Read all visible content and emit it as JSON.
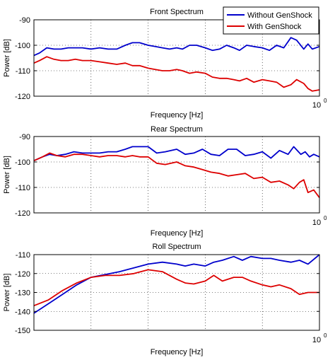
{
  "chart_data": [
    {
      "type": "line",
      "title": "Front Spectrum",
      "xlabel": "Frequency [Hz]",
      "ylabel": "Power [dB]",
      "ylim": [
        -120,
        -90
      ],
      "yticks": [
        -90,
        -100,
        -110,
        -120
      ],
      "xtick_label": "10",
      "xtick_exponent": "0",
      "grid": true,
      "legend": {
        "position": "top-right",
        "entries": [
          "Without GenShock",
          "With GenShock"
        ]
      },
      "series": [
        {
          "name": "Without GenShock",
          "color": "#0000cc",
          "x": [
            0,
            0.02,
            0.045,
            0.07,
            0.095,
            0.12,
            0.145,
            0.17,
            0.2,
            0.23,
            0.26,
            0.29,
            0.32,
            0.345,
            0.37,
            0.4,
            0.425,
            0.45,
            0.475,
            0.5,
            0.52,
            0.545,
            0.57,
            0.6,
            0.625,
            0.65,
            0.675,
            0.7,
            0.72,
            0.745,
            0.77,
            0.8,
            0.825,
            0.85,
            0.875,
            0.9,
            0.92,
            0.945,
            0.96,
            0.975,
            1.0
          ],
          "y": [
            -104,
            -103,
            -101,
            -101.5,
            -101.5,
            -101,
            -101,
            -101,
            -101.5,
            -101,
            -101.5,
            -101.5,
            -100,
            -99,
            -99,
            -100,
            -100.5,
            -101,
            -101.5,
            -101,
            -101.5,
            -100,
            -100,
            -101,
            -102,
            -101.5,
            -100,
            -101,
            -102,
            -100,
            -100.5,
            -101,
            -102,
            -100,
            -101,
            -97,
            -98,
            -101.5,
            -99.5,
            -101.5,
            -100.5
          ]
        },
        {
          "name": "With GenShock",
          "color": "#dd0000",
          "x": [
            0,
            0.02,
            0.045,
            0.07,
            0.095,
            0.12,
            0.145,
            0.17,
            0.2,
            0.23,
            0.26,
            0.29,
            0.32,
            0.345,
            0.37,
            0.4,
            0.425,
            0.45,
            0.475,
            0.5,
            0.52,
            0.545,
            0.57,
            0.6,
            0.625,
            0.65,
            0.675,
            0.7,
            0.72,
            0.745,
            0.77,
            0.8,
            0.825,
            0.85,
            0.875,
            0.9,
            0.92,
            0.945,
            0.96,
            0.975,
            1.0
          ],
          "y": [
            -107,
            -106,
            -104.5,
            -105.5,
            -106,
            -106,
            -105.5,
            -106,
            -106,
            -106.5,
            -107,
            -107.5,
            -107,
            -108,
            -108,
            -109,
            -109.5,
            -110,
            -110,
            -109.5,
            -110,
            -111,
            -110.5,
            -111,
            -112.5,
            -113,
            -113,
            -113.5,
            -114,
            -113,
            -114.5,
            -113.5,
            -114,
            -114.5,
            -116.5,
            -115.5,
            -113.5,
            -115,
            -117,
            -118,
            -117.5
          ]
        }
      ]
    },
    {
      "type": "line",
      "title": "Rear Spectrum",
      "xlabel": "Frequency [Hz]",
      "ylabel": "Power [dB]",
      "ylim": [
        -120,
        -90
      ],
      "yticks": [
        -90,
        -100,
        -110,
        -120
      ],
      "xtick_label": "10",
      "xtick_exponent": "0",
      "grid": true,
      "series": [
        {
          "name": "Without GenShock",
          "color": "#0000cc",
          "x": [
            0,
            0.03,
            0.055,
            0.08,
            0.11,
            0.14,
            0.17,
            0.2,
            0.23,
            0.26,
            0.29,
            0.32,
            0.345,
            0.37,
            0.4,
            0.43,
            0.46,
            0.5,
            0.53,
            0.56,
            0.59,
            0.62,
            0.65,
            0.68,
            0.71,
            0.74,
            0.77,
            0.8,
            0.83,
            0.86,
            0.89,
            0.91,
            0.935,
            0.95,
            0.965,
            0.98,
            1.0
          ],
          "y": [
            -99.5,
            -98,
            -97,
            -97.5,
            -97,
            -96,
            -96.5,
            -96.5,
            -96.5,
            -96,
            -96,
            -95,
            -94,
            -94,
            -94,
            -96.5,
            -96,
            -95,
            -97,
            -96.5,
            -95,
            -97,
            -97.5,
            -95,
            -95,
            -97.5,
            -97,
            -96,
            -98.5,
            -95.5,
            -97,
            -94,
            -97,
            -96,
            -98,
            -97,
            -98
          ]
        },
        {
          "name": "With GenShock",
          "color": "#dd0000",
          "x": [
            0,
            0.03,
            0.055,
            0.08,
            0.11,
            0.14,
            0.17,
            0.2,
            0.23,
            0.26,
            0.29,
            0.32,
            0.345,
            0.37,
            0.4,
            0.43,
            0.46,
            0.5,
            0.53,
            0.56,
            0.59,
            0.62,
            0.65,
            0.68,
            0.71,
            0.74,
            0.77,
            0.8,
            0.83,
            0.86,
            0.89,
            0.91,
            0.93,
            0.945,
            0.96,
            0.98,
            1.0
          ],
          "y": [
            -99.5,
            -98,
            -96.5,
            -97.5,
            -98,
            -97,
            -97,
            -97.5,
            -98,
            -97.5,
            -97.5,
            -98,
            -97.5,
            -98,
            -98,
            -100.5,
            -101,
            -100,
            -101.5,
            -102,
            -103,
            -104,
            -104.5,
            -105.5,
            -105,
            -104.5,
            -106.5,
            -106,
            -108,
            -107.5,
            -109,
            -110.5,
            -108,
            -107,
            -112,
            -111,
            -114
          ]
        }
      ]
    },
    {
      "type": "line",
      "title": "Roll Spectrum",
      "xlabel": "Frequency [Hz]",
      "ylabel": "Power [dB]",
      "ylim": [
        -150,
        -110
      ],
      "yticks": [
        -110,
        -120,
        -130,
        -140,
        -150
      ],
      "xtick_label": "10",
      "xtick_exponent": "0",
      "grid": true,
      "series": [
        {
          "name": "Without GenShock",
          "color": "#0000cc",
          "x": [
            0,
            0.05,
            0.1,
            0.15,
            0.2,
            0.25,
            0.3,
            0.35,
            0.4,
            0.45,
            0.5,
            0.53,
            0.56,
            0.6,
            0.63,
            0.66,
            0.7,
            0.73,
            0.76,
            0.8,
            0.83,
            0.86,
            0.9,
            0.93,
            0.96,
            1.0
          ],
          "y": [
            -141,
            -136,
            -131,
            -126,
            -122,
            -120.5,
            -119,
            -117,
            -115,
            -114,
            -115,
            -116,
            -115,
            -116,
            -114,
            -113,
            -111,
            -113,
            -111,
            -112,
            -112,
            -113,
            -114,
            -113,
            -115,
            -110
          ]
        },
        {
          "name": "With GenShock",
          "color": "#dd0000",
          "x": [
            0,
            0.05,
            0.1,
            0.15,
            0.2,
            0.25,
            0.3,
            0.35,
            0.4,
            0.45,
            0.5,
            0.53,
            0.56,
            0.6,
            0.63,
            0.66,
            0.7,
            0.73,
            0.76,
            0.8,
            0.83,
            0.86,
            0.9,
            0.93,
            0.96,
            1.0
          ],
          "y": [
            -137,
            -134,
            -129,
            -125,
            -122,
            -121,
            -121,
            -120,
            -118,
            -119,
            -123,
            -125,
            -125.5,
            -124,
            -121,
            -124,
            -122,
            -122,
            -124,
            -126,
            -127,
            -126,
            -128,
            -131,
            -130,
            -130
          ]
        }
      ]
    }
  ]
}
